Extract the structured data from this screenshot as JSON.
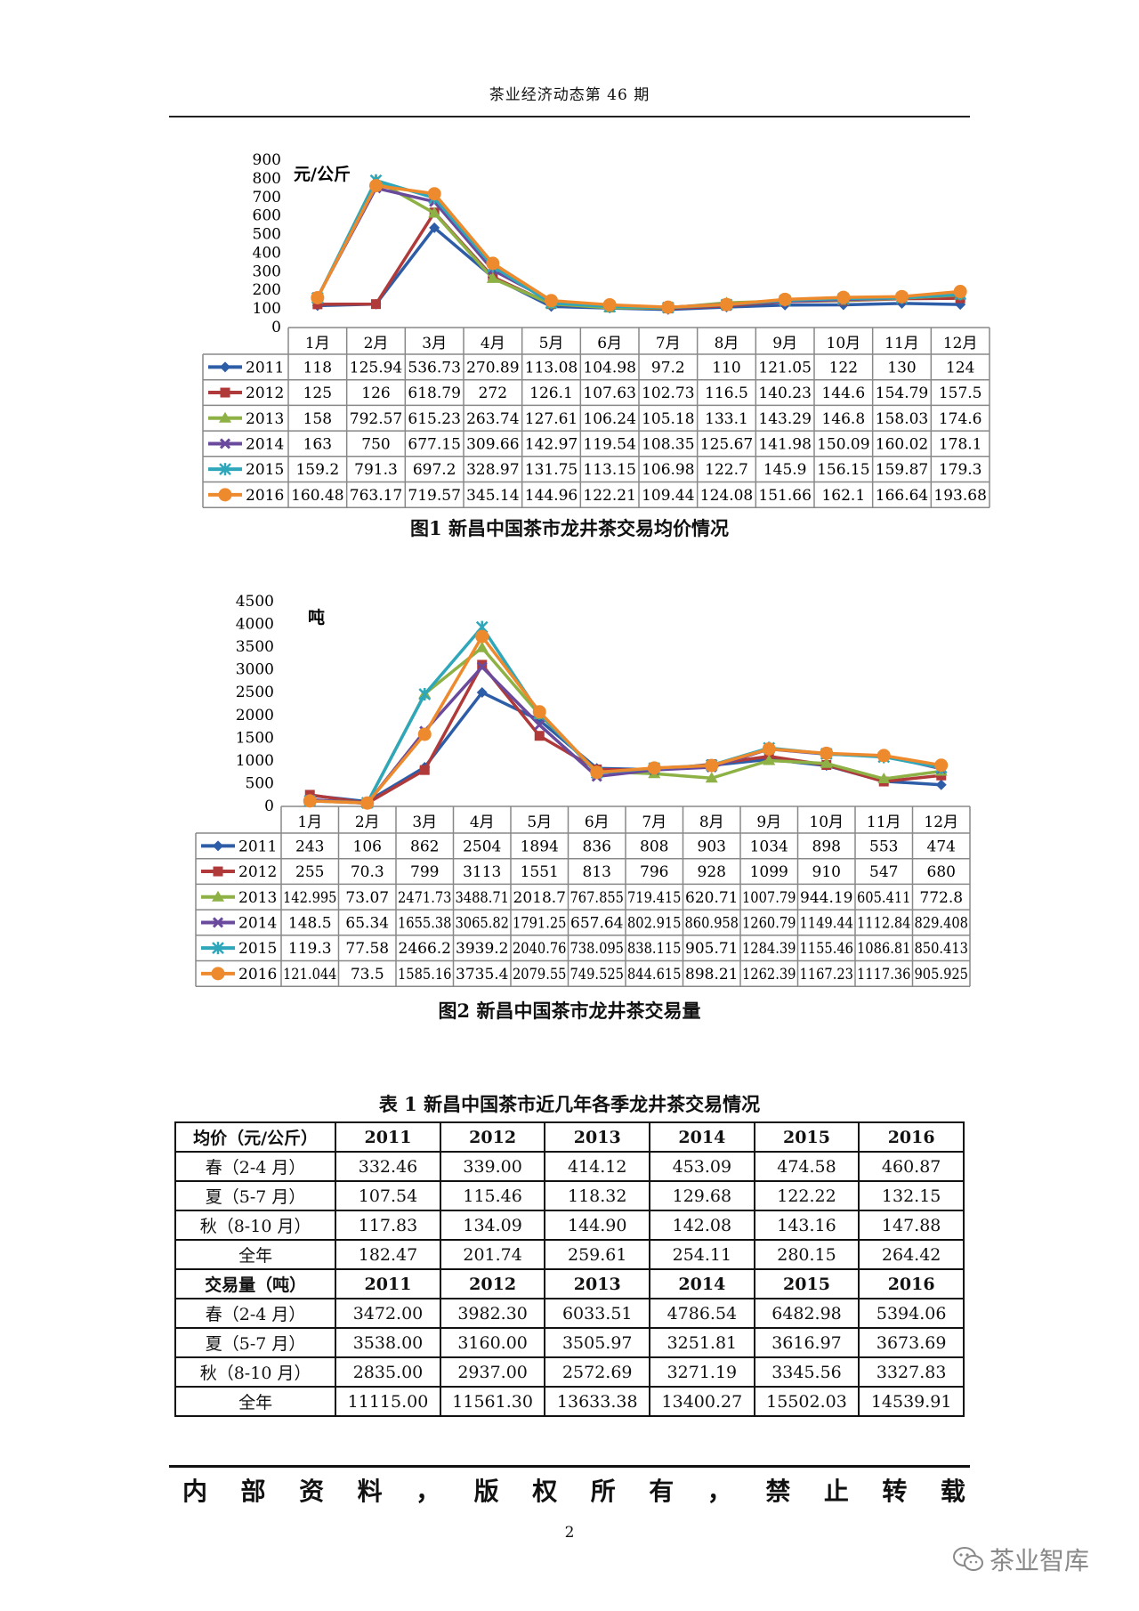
{
  "header": {
    "title": "茶业经济动态第 46 期"
  },
  "chart_data": [
    {
      "type": "line",
      "ylabel": "元/公斤",
      "ylim": [
        0,
        900
      ],
      "yticks": [
        0,
        100,
        200,
        300,
        400,
        500,
        600,
        700,
        800,
        900
      ],
      "categories": [
        "1月",
        "2月",
        "3月",
        "4月",
        "5月",
        "6月",
        "7月",
        "8月",
        "9月",
        "10月",
        "11月",
        "12月"
      ],
      "series": [
        {
          "name": "2011",
          "color": "#2E5DA8",
          "marker": "diamond",
          "values": [
            "118",
            "125.94",
            "536.73",
            "270.89",
            "113.08",
            "104.98",
            "97.2",
            "110",
            "121.05",
            "122",
            "130",
            "124"
          ]
        },
        {
          "name": "2012",
          "color": "#B03A3A",
          "marker": "square",
          "values": [
            "125",
            "126",
            "618.79",
            "272",
            "126.1",
            "107.63",
            "102.73",
            "116.5",
            "140.23",
            "144.6",
            "154.79",
            "157.5"
          ]
        },
        {
          "name": "2013",
          "color": "#8DB144",
          "marker": "triangle",
          "values": [
            "158",
            "792.57",
            "615.23",
            "263.74",
            "127.61",
            "106.24",
            "105.18",
            "133.1",
            "143.29",
            "146.8",
            "158.03",
            "174.6"
          ]
        },
        {
          "name": "2014",
          "color": "#6A4A9C",
          "marker": "x",
          "values": [
            "163",
            "750",
            "677.15",
            "309.66",
            "142.97",
            "119.54",
            "108.35",
            "125.67",
            "141.98",
            "150.09",
            "160.02",
            "178.1"
          ]
        },
        {
          "name": "2015",
          "color": "#2FA7BA",
          "marker": "star",
          "values": [
            "159.2",
            "791.3",
            "697.2",
            "328.97",
            "131.75",
            "113.15",
            "106.98",
            "122.7",
            "145.9",
            "156.15",
            "159.87",
            "179.3"
          ]
        },
        {
          "name": "2016",
          "color": "#EE8A2E",
          "marker": "circle",
          "values": [
            "160.48",
            "763.17",
            "719.57",
            "345.14",
            "144.96",
            "122.21",
            "109.44",
            "124.08",
            "151.66",
            "162.1",
            "166.64",
            "193.68"
          ]
        }
      ],
      "caption": "图1  新昌中国茶市龙井茶交易均价情况"
    },
    {
      "type": "line",
      "ylabel": "吨",
      "ylim": [
        0,
        4500
      ],
      "yticks": [
        0,
        500,
        1000,
        1500,
        2000,
        2500,
        3000,
        3500,
        4000,
        4500
      ],
      "categories": [
        "1月",
        "2月",
        "3月",
        "4月",
        "5月",
        "6月",
        "7月",
        "8月",
        "9月",
        "10月",
        "11月",
        "12月"
      ],
      "series": [
        {
          "name": "2011",
          "color": "#2E5DA8",
          "marker": "diamond",
          "values": [
            "243",
            "106",
            "862",
            "2504",
            "1894",
            "836",
            "808",
            "903",
            "1034",
            "898",
            "553",
            "474"
          ]
        },
        {
          "name": "2012",
          "color": "#B03A3A",
          "marker": "square",
          "values": [
            "255",
            "70.3",
            "799",
            "3113",
            "1551",
            "813",
            "796",
            "928",
            "1099",
            "910",
            "547",
            "680"
          ]
        },
        {
          "name": "2013",
          "color": "#8DB144",
          "marker": "triangle",
          "values": [
            "142.995",
            "73.07",
            "2471.73",
            "3488.71",
            "2018.7",
            "767.855",
            "719.415",
            "620.71",
            "1007.79",
            "944.19",
            "605.411",
            "772.8"
          ]
        },
        {
          "name": "2014",
          "color": "#6A4A9C",
          "marker": "x",
          "values": [
            "148.5",
            "65.34",
            "1655.38",
            "3065.82",
            "1791.25",
            "657.64",
            "802.915",
            "860.958",
            "1260.79",
            "1149.44",
            "1112.84",
            "829.408"
          ]
        },
        {
          "name": "2015",
          "color": "#2FA7BA",
          "marker": "star",
          "values": [
            "119.3",
            "77.58",
            "2466.2",
            "3939.2",
            "2040.76",
            "738.095",
            "838.115",
            "905.71",
            "1284.39",
            "1155.46",
            "1086.81",
            "850.413"
          ]
        },
        {
          "name": "2016",
          "color": "#EE8A2E",
          "marker": "circle",
          "values": [
            "121.044",
            "73.5",
            "1585.16",
            "3735.4",
            "2079.55",
            "749.525",
            "844.615",
            "898.21",
            "1262.39",
            "1167.23",
            "1117.36",
            "905.925"
          ]
        }
      ],
      "caption": "图2  新昌中国茶市龙井茶交易量"
    }
  ],
  "season_table": {
    "title": "表 1  新昌中国茶市近几年各季龙井茶交易情况",
    "sections": [
      {
        "header": [
          "均价（元/公斤）",
          "2011",
          "2012",
          "2013",
          "2014",
          "2015",
          "2016"
        ],
        "rows": [
          [
            "春（2-4 月）",
            "332.46",
            "339.00",
            "414.12",
            "453.09",
            "474.58",
            "460.87"
          ],
          [
            "夏（5-7 月）",
            "107.54",
            "115.46",
            "118.32",
            "129.68",
            "122.22",
            "132.15"
          ],
          [
            "秋（8-10 月）",
            "117.83",
            "134.09",
            "144.90",
            "142.08",
            "143.16",
            "147.88"
          ],
          [
            "全年",
            "182.47",
            "201.74",
            "259.61",
            "254.11",
            "280.15",
            "264.42"
          ]
        ]
      },
      {
        "header": [
          "交易量（吨）",
          "2011",
          "2012",
          "2013",
          "2014",
          "2015",
          "2016"
        ],
        "rows": [
          [
            "春（2-4 月）",
            "3472.00",
            "3982.30",
            "6033.51",
            "4786.54",
            "6482.98",
            "5394.06"
          ],
          [
            "夏（5-7 月）",
            "3538.00",
            "3160.00",
            "3505.97",
            "3251.81",
            "3616.97",
            "3673.69"
          ],
          [
            "秋（8-10 月）",
            "2835.00",
            "2937.00",
            "2572.69",
            "3271.19",
            "3345.56",
            "3327.83"
          ],
          [
            "全年",
            "11115.00",
            "11561.30",
            "13633.38",
            "13400.27",
            "15502.03",
            "14539.91"
          ]
        ]
      }
    ]
  },
  "footer": {
    "chars": [
      "内",
      "部",
      "资",
      "料",
      "，",
      "版",
      "权",
      "所",
      "有",
      "，",
      "禁",
      "止",
      "转",
      "载"
    ]
  },
  "page_number": "2",
  "watermark": {
    "text": "茶业智库",
    "icon": "wechat-icon"
  }
}
